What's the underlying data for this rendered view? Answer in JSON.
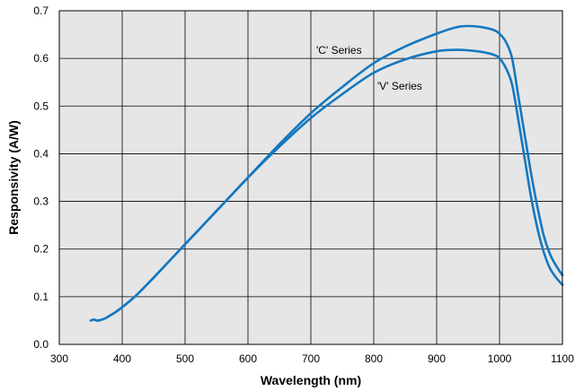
{
  "chart_data": {
    "type": "line",
    "xlabel": "Wavelength (nm)",
    "ylabel": "Responsivity (A/W)",
    "xlim": [
      300,
      1100
    ],
    "ylim": [
      0.0,
      0.7
    ],
    "x_ticks": [
      "300",
      "400",
      "500",
      "600",
      "700",
      "800",
      "900",
      "1000",
      "1100"
    ],
    "y_ticks": [
      "0.0",
      "0.1",
      "0.2",
      "0.3",
      "0.4",
      "0.5",
      "0.6",
      "0.7"
    ],
    "grid": true,
    "legend": "none",
    "line_color": "#1478c0",
    "plot_background": "#e6e6e6",
    "series": [
      {
        "name": "'C' Series",
        "x": [
          350,
          355,
          360,
          365,
          370,
          375,
          380,
          390,
          400,
          420,
          450,
          500,
          550,
          600,
          650,
          700,
          750,
          800,
          850,
          900,
          930,
          950,
          970,
          990,
          1000,
          1010,
          1020,
          1030,
          1040,
          1050,
          1060,
          1070,
          1080,
          1090,
          1100
        ],
        "y": [
          0.05,
          0.052,
          0.05,
          0.051,
          0.053,
          0.056,
          0.06,
          0.068,
          0.078,
          0.1,
          0.14,
          0.21,
          0.28,
          0.35,
          0.42,
          0.485,
          0.54,
          0.59,
          0.625,
          0.652,
          0.665,
          0.668,
          0.666,
          0.66,
          0.652,
          0.635,
          0.6,
          0.52,
          0.44,
          0.36,
          0.29,
          0.23,
          0.19,
          0.165,
          0.145
        ]
      },
      {
        "name": "'V' Series",
        "x": [
          350,
          355,
          360,
          365,
          370,
          375,
          380,
          390,
          400,
          420,
          450,
          500,
          550,
          600,
          650,
          700,
          750,
          800,
          850,
          900,
          930,
          950,
          970,
          990,
          1000,
          1010,
          1020,
          1030,
          1040,
          1050,
          1060,
          1070,
          1080,
          1090,
          1100
        ],
        "y": [
          0.05,
          0.052,
          0.05,
          0.051,
          0.053,
          0.056,
          0.06,
          0.068,
          0.078,
          0.1,
          0.14,
          0.21,
          0.28,
          0.35,
          0.415,
          0.475,
          0.525,
          0.57,
          0.598,
          0.615,
          0.618,
          0.617,
          0.614,
          0.608,
          0.6,
          0.58,
          0.545,
          0.47,
          0.39,
          0.31,
          0.245,
          0.195,
          0.16,
          0.14,
          0.125
        ]
      }
    ],
    "annotations": [
      "'C' Series",
      "'V' Series"
    ]
  }
}
